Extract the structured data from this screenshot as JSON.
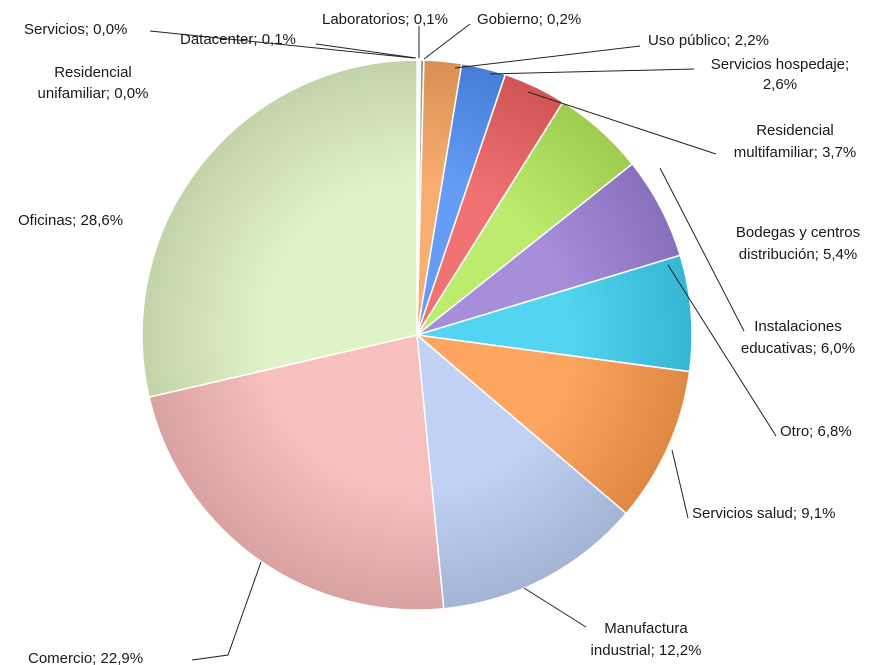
{
  "chart_data": {
    "type": "pie",
    "title": "",
    "start_angle_deg": 0,
    "direction": "clockwise",
    "slices": [
      {
        "label": "Servicios",
        "value": 0.0,
        "value_text": "0,0%",
        "color": "#5b9bd5"
      },
      {
        "label": "Residencial unifamiliar",
        "value": 0.0,
        "value_text": "0,0%",
        "color": "#c0504d"
      },
      {
        "label": "Laboratorios",
        "value": 0.1,
        "value_text": "0,1%",
        "color": "#2e75b6"
      },
      {
        "label": "Datacenter",
        "value": 0.1,
        "value_text": "0,1%",
        "color": "#7f7f7f"
      },
      {
        "label": "Gobierno",
        "value": 0.2,
        "value_text": "0,2%",
        "color": "#a5a5a5"
      },
      {
        "label": "Uso público",
        "value": 2.2,
        "value_text": "2,2%",
        "color": "#f7a35c"
      },
      {
        "label": "Servicios hospedaje",
        "value": 2.6,
        "value_text": "2,6%",
        "color": "#4f8ef5"
      },
      {
        "label": "Residencial multifamiliar",
        "value": 3.7,
        "value_text": "3,7%",
        "color": "#ee5f5f"
      },
      {
        "label": "Bodegas y centros distribución",
        "value": 5.4,
        "value_text": "5,4%",
        "color": "#b3e85a"
      },
      {
        "label": "Instalaciones educativas",
        "value": 6.0,
        "value_text": "6,0%",
        "color": "#9a7fd6"
      },
      {
        "label": "Otro",
        "value": 6.8,
        "value_text": "6,8%",
        "color": "#3ccfef"
      },
      {
        "label": "Servicios salud",
        "value": 9.1,
        "value_text": "9,1%",
        "color": "#fd9a4d"
      },
      {
        "label": "Manufactura industrial",
        "value": 12.2,
        "value_text": "12,2%",
        "color": "#b9ccf2"
      },
      {
        "label": "Comercio",
        "value": 22.9,
        "value_text": "22,9%",
        "color": "#f7b8b6"
      },
      {
        "label": "Oficinas",
        "value": 28.6,
        "value_text": "28,6%",
        "color": "#dcf0c0"
      }
    ],
    "data_labels": [
      {
        "lines": [
          "Servicios; 0,0%"
        ]
      },
      {
        "lines": [
          "Residencial",
          "unifamiliar; 0,0%"
        ]
      },
      {
        "lines": [
          "Laboratorios; 0,1%"
        ]
      },
      {
        "lines": [
          "Datacenter; 0,1%"
        ]
      },
      {
        "lines": [
          "Gobierno; 0,2%"
        ]
      },
      {
        "lines": [
          "Uso público; 2,2%"
        ]
      },
      {
        "lines": [
          "Servicios hospedaje;",
          "2,6%"
        ]
      },
      {
        "lines": [
          "Residencial",
          "multifamiliar; 3,7%"
        ]
      },
      {
        "lines": [
          "Bodegas y centros",
          "distribución; 5,4%"
        ]
      },
      {
        "lines": [
          "Instalaciones",
          "educativas; 6,0%"
        ]
      },
      {
        "lines": [
          "Otro; 6,8%"
        ]
      },
      {
        "lines": [
          "Servicios salud; 9,1%"
        ]
      },
      {
        "lines": [
          "Manufactura",
          "industrial; 12,2%"
        ]
      },
      {
        "lines": [
          "Comercio; 22,9%"
        ]
      },
      {
        "lines": [
          "Oficinas; 28,6%"
        ]
      }
    ]
  }
}
